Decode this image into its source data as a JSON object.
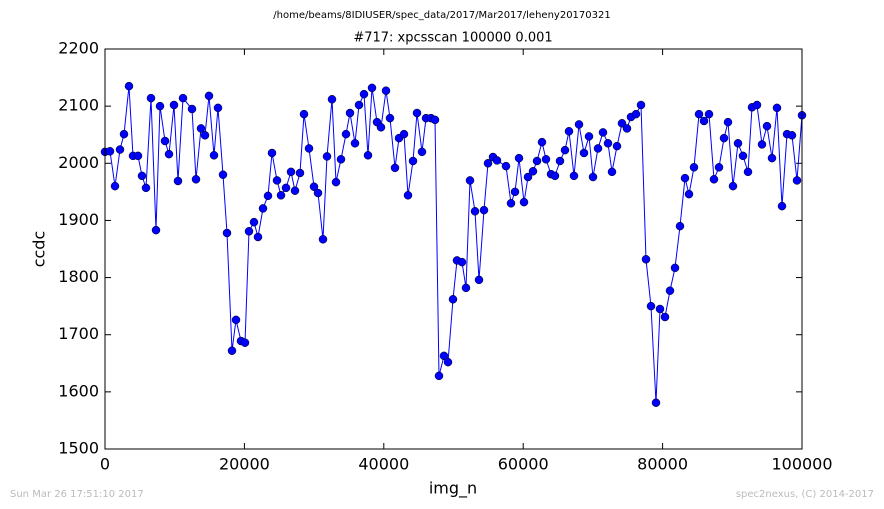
{
  "chart_data": {
    "type": "line",
    "suptitle": "/home/beams/8IDIUSER/spec_data/2017/Mar2017/leheny20170321",
    "title": "#717: xpcsscan 100000 0.001",
    "x_label": "img_n",
    "y_label": "ccdc",
    "footer_left": "Sun Mar 26 17:51:10 2017",
    "footer_right": "spec2nexus, (C) 2014-2017",
    "xlim": [
      0,
      100000
    ],
    "ylim": [
      1500,
      2200
    ],
    "xticks": [
      0,
      20000,
      40000,
      60000,
      80000,
      100000
    ],
    "yticks": [
      1500,
      1600,
      1700,
      1800,
      1900,
      2000,
      2100,
      2200
    ],
    "x": [
      0,
      717,
      1435,
      2152,
      2726,
      3443,
      4017,
      4735,
      5308,
      5882,
      6600,
      7317,
      7891,
      8608,
      9182,
      9900,
      10473,
      11191,
      12482,
      13056,
      13773,
      14347,
      14921,
      15638,
      16212,
      16930,
      17504,
      18221,
      18795,
      19512,
      20086,
      20660,
      21377,
      21951,
      22669,
      23386,
      23960,
      24677,
      25251,
      25968,
      26686,
      27260,
      27977,
      28551,
      29268,
      29986,
      30560,
      31277,
      31851,
      32568,
      33142,
      33859,
      34577,
      35151,
      35868,
      36442,
      37159,
      37733,
      38307,
      39024,
      39598,
      40316,
      40890,
      41607,
      42181,
      42898,
      43472,
      44189,
      44763,
      45481,
      46055,
      46772,
      47346,
      47920,
      48637,
      49211,
      49928,
      50502,
      51219,
      51793,
      52367,
      53085,
      53659,
      54376,
      54950,
      55667,
      56241,
      57532,
      58250,
      58824,
      59398,
      60115,
      60689,
      61406,
      61980,
      62697,
      63271,
      63989,
      64562,
      65280,
      65997,
      66571,
      67288,
      68006,
      68723,
      69440,
      70014,
      70732,
      71449,
      72166,
      72740,
      73458,
      74175,
      74892,
      75466,
      76184,
      76901,
      77618,
      78336,
      79053,
      79627,
      80344,
      81062,
      81779,
      82496,
      83214,
      83788,
      84505,
      85222,
      85940,
      86657,
      87374,
      88092,
      88809,
      89383,
      90100,
      90818,
      91535,
      92252,
      92826,
      93544,
      94261,
      94978,
      95696,
      96413,
      97131,
      97848,
      98565,
      99283,
      100000
    ],
    "series": [
      {
        "name": "ccdc",
        "color": "#0000ff",
        "values": [
          2020,
          2021,
          1960,
          2024,
          2051,
          2135,
          2013,
          2013,
          1978,
          1957,
          2114,
          1883,
          2100,
          2039,
          2016,
          2102,
          1969,
          2114,
          2095,
          1972,
          2061,
          2049,
          2118,
          2014,
          2097,
          1980,
          1878,
          1672,
          1726,
          1689,
          1686,
          1881,
          1897,
          1871,
          1921,
          1943,
          2018,
          1970,
          1944,
          1957,
          1985,
          1952,
          1983,
          2086,
          2026,
          1959,
          1948,
          1867,
          2012,
          2112,
          1967,
          2007,
          2051,
          2088,
          2035,
          2102,
          2121,
          2014,
          2132,
          2072,
          2063,
          2127,
          2079,
          1992,
          2044,
          2051,
          1944,
          2004,
          2088,
          2020,
          2079,
          2079,
          2076,
          1628,
          1663,
          1652,
          1762,
          1830,
          1827,
          1782,
          1970,
          1916,
          1796,
          1918,
          2000,
          2011,
          2005,
          1995,
          1930,
          1950,
          2009,
          1932,
          1976,
          1986,
          2004,
          2037,
          2007,
          1981,
          1978,
          2004,
          2023,
          2056,
          1978,
          2068,
          2018,
          2047,
          1976,
          2026,
          2054,
          2035,
          1985,
          2030,
          2070,
          2061,
          2081,
          2086,
          2102,
          1832,
          1750,
          1581,
          1745,
          1731,
          1777,
          1817,
          1890,
          1974,
          1946,
          1993,
          2086,
          2074,
          2086,
          1972,
          1993,
          2044,
          2072,
          1960,
          2035,
          2013,
          1985,
          2098,
          2102,
          2033,
          2065,
          2009,
          2097,
          1925,
          2051,
          2049,
          1970,
          2084
        ]
      }
    ]
  }
}
